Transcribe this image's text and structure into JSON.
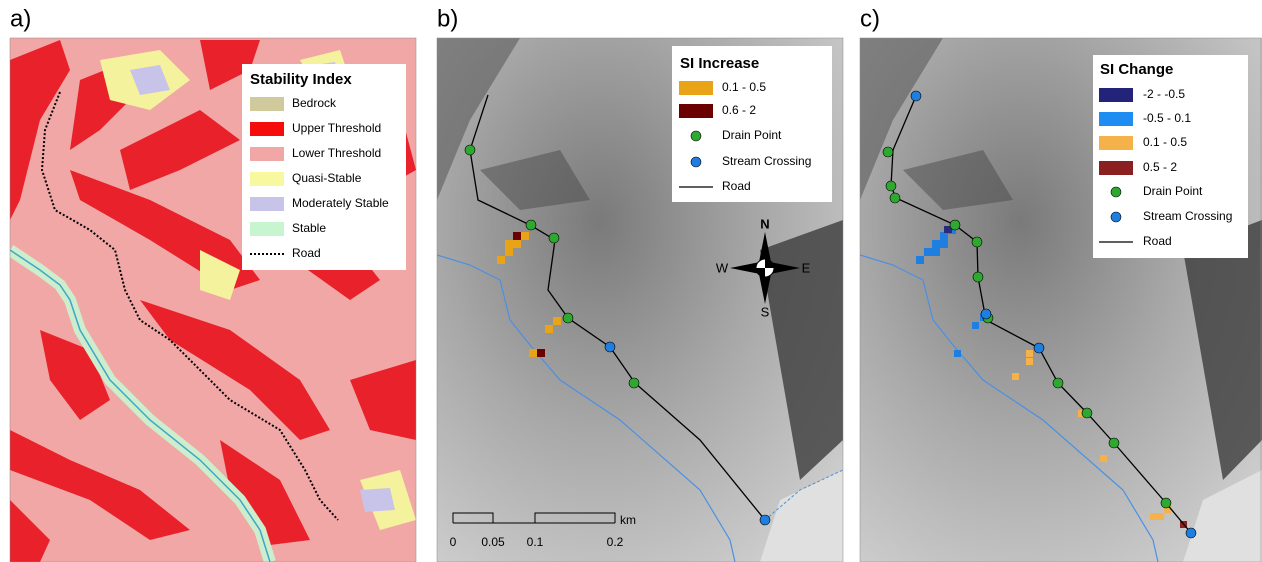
{
  "panels": [
    {
      "label": "a)",
      "legend": {
        "title": "Stability Index",
        "items": [
          "Bedrock",
          "Upper Threshold",
          "Lower Threshold",
          "Quasi-Stable",
          "Moderately Stable",
          "Stable",
          "Road"
        ]
      }
    },
    {
      "label": "b)",
      "legend": {
        "title": "SI Increase",
        "items": [
          "0.1 - 0.5",
          "0.6 - 2",
          "Drain Point",
          "Stream Crossing",
          "Road"
        ]
      },
      "compass": {
        "north": "N",
        "south": "S",
        "east": "E",
        "west": "W"
      },
      "scale_bar": {
        "ticks": [
          "0",
          "0.05",
          "0.1",
          "0.2"
        ],
        "unit": "km"
      }
    },
    {
      "label": "c)",
      "legend": {
        "title": "SI Change",
        "items": [
          "-2 - -0.5",
          "-0.5 - 0.1",
          "0.1 - 0.5",
          "0.5 - 2",
          "Drain Point",
          "Stream Crossing",
          "Road"
        ]
      }
    }
  ]
}
